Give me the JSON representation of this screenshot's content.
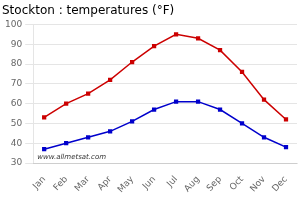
{
  "chart_data": {
    "type": "line",
    "title": "Stockton : temperatures (°F)",
    "categories": [
      "Jan",
      "Feb",
      "Mar",
      "Apr",
      "May",
      "Jun",
      "Jul",
      "Aug",
      "Sep",
      "Oct",
      "Nov",
      "Dec"
    ],
    "series": [
      {
        "color": "#cc0000",
        "marker": "square",
        "values": [
          53,
          60,
          65,
          72,
          81,
          89,
          95,
          93,
          87,
          76,
          62,
          52
        ]
      },
      {
        "color": "#0000cc",
        "marker": "square",
        "values": [
          37,
          40,
          43,
          46,
          51,
          57,
          61,
          61,
          57,
          50,
          43,
          38
        ]
      }
    ],
    "ylim": [
      30,
      100
    ],
    "yticks": [
      30,
      40,
      50,
      60,
      70,
      80,
      90,
      100
    ],
    "grid": true,
    "annotations": [
      "www.allmetsat.com"
    ]
  }
}
